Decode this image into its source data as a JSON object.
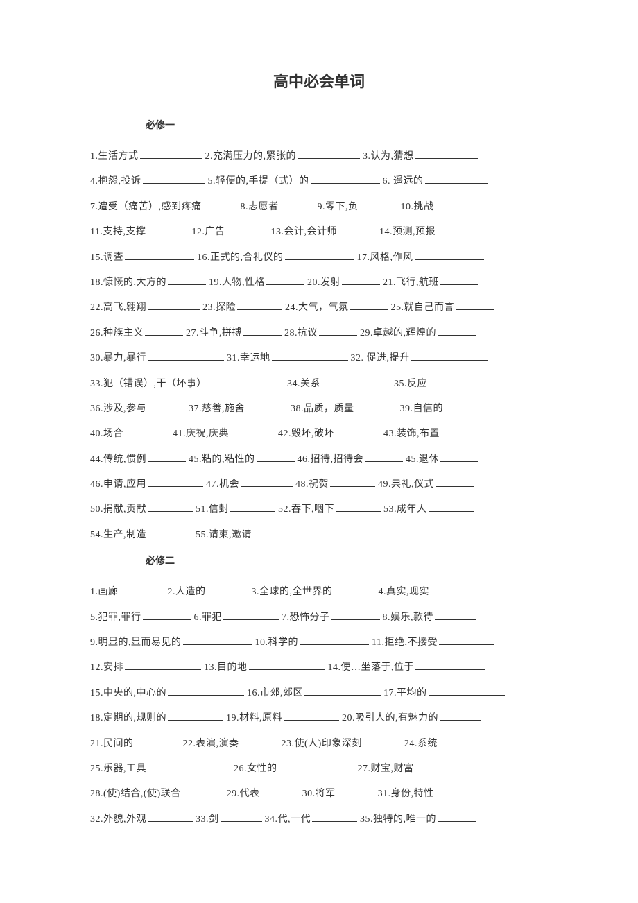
{
  "title": "高中必会单词",
  "sections": [
    {
      "header": "必修一",
      "lines": [
        [
          {
            "n": "1",
            "t": "生活方式",
            "w": 90
          },
          {
            "n": "2",
            "t": "充满压力的,紧张的",
            "w": 90
          },
          {
            "n": "3",
            "t": "认为,猜想",
            "w": 90
          }
        ],
        [
          {
            "n": "4",
            "t": "抱怨,投诉",
            "w": 90
          },
          {
            "n": "5",
            "t": "轻便的,手提（式）的",
            "w": 100
          },
          {
            "n": "6",
            "t": " 遥远的",
            "w": 90
          }
        ],
        [
          {
            "n": "7",
            "t": "遭受（痛苦）,感到疼痛",
            "w": 50
          },
          {
            "n": "8",
            "t": "志愿者",
            "w": 50
          },
          {
            "n": "9",
            "t": "零下,负",
            "w": 55
          },
          {
            "n": "10",
            "t": "挑战",
            "w": 55
          }
        ],
        [
          {
            "n": "11",
            "t": "支持,支撑",
            "w": 60
          },
          {
            "n": "12",
            "t": "广告",
            "w": 60
          },
          {
            "n": "13",
            "t": "会计,会计师",
            "w": 55
          },
          {
            "n": "14",
            "t": "预测,预报",
            "w": 55
          }
        ],
        [
          {
            "n": "15",
            "t": "调查",
            "w": 100
          },
          {
            "n": "16",
            "t": "正式的,合礼仪的",
            "w": 100
          },
          {
            "n": "17",
            "t": "风格,作风",
            "w": 100
          }
        ],
        [
          {
            "n": "18",
            "t": "慷慨的,大方的",
            "w": 55
          },
          {
            "n": "19",
            "t": "人物,性格",
            "w": 55
          },
          {
            "n": "20",
            "t": "发射",
            "w": 55
          },
          {
            "n": "21",
            "t": "飞行,航班",
            "w": 55
          }
        ],
        [
          {
            "n": "22",
            "t": "高飞,翱翔",
            "w": 75
          },
          {
            "n": "23",
            "t": "探险",
            "w": 65
          },
          {
            "n": "24",
            "t": "大气，气氛",
            "w": 55
          },
          {
            "n": "25",
            "t": "就自己而言",
            "w": 55
          }
        ],
        [
          {
            "n": "26",
            "t": "种族主义",
            "w": 55
          },
          {
            "n": "27",
            "t": "斗争,拼搏",
            "w": 55
          },
          {
            "n": "28",
            "t": "抗议",
            "w": 55
          },
          {
            "n": "29",
            "t": "卓越的,辉煌的",
            "w": 55
          }
        ],
        [
          {
            "n": "30",
            "t": "暴力,暴行",
            "w": 110
          },
          {
            "n": "31",
            "t": "幸运地",
            "w": 110
          },
          {
            "n": "32",
            "t": " 促进,提升",
            "w": 110
          }
        ],
        [
          {
            "n": "33",
            "t": "犯（错误）,干（坏事）",
            "w": 110
          },
          {
            "n": "34",
            "t": "关系",
            "w": 100
          },
          {
            "n": "35",
            "t": "反应",
            "w": 100
          }
        ],
        [
          {
            "n": "36",
            "t": "涉及,参与",
            "w": 55
          },
          {
            "n": "37",
            "t": "慈善,施舍",
            "w": 60
          },
          {
            "n": "38",
            "t": "品质，质量",
            "w": 60
          },
          {
            "n": "39",
            "t": "自信的",
            "w": 55
          }
        ],
        [
          {
            "n": "40",
            "t": "场合",
            "w": 65
          },
          {
            "n": "41",
            "t": "庆祝,庆典",
            "w": 65
          },
          {
            "n": "42",
            "t": "毁坏,破坏",
            "w": 65
          },
          {
            "n": "43",
            "t": "装饰,布置",
            "w": 55
          }
        ],
        [
          {
            "n": "44",
            "t": "传统,惯例",
            "w": 55
          },
          {
            "n": "45",
            "t": "粘的,粘性的",
            "w": 55
          },
          {
            "n": "46",
            "t": "招待,招待会",
            "w": 55
          },
          {
            "n": "45",
            "t": "退休",
            "w": 55
          }
        ],
        [
          {
            "n": "46",
            "t": "申请,应用",
            "w": 80
          },
          {
            "n": "47",
            "t": "机会",
            "w": 75
          },
          {
            "n": "48",
            "t": "祝贺",
            "w": 65
          },
          {
            "n": "49",
            "t": "典礼,仪式",
            "w": 55
          }
        ],
        [
          {
            "n": "50",
            "t": "捐献,贡献",
            "w": 65
          },
          {
            "n": "51",
            "t": "信封",
            "w": 65
          },
          {
            "n": "52",
            "t": "吞下,咽下",
            "w": 65
          },
          {
            "n": "53",
            "t": "成年人",
            "w": 65
          }
        ],
        [
          {
            "n": "54",
            "t": "生产,制造",
            "w": 65
          },
          {
            "n": "55",
            "t": "请柬,邀请",
            "w": 65
          }
        ]
      ]
    },
    {
      "header": "必修二",
      "lines": [
        [
          {
            "n": "1",
            "t": "画廊",
            "w": 65
          },
          {
            "n": "2",
            "t": "人造的",
            "w": 60
          },
          {
            "n": "3",
            "t": "全球的,全世界的",
            "w": 60
          },
          {
            "n": "4",
            "t": "真实,现实",
            "w": 65
          }
        ],
        [
          {
            "n": "5",
            "t": "犯罪,罪行",
            "w": 70
          },
          {
            "n": "6",
            "t": "罪犯",
            "w": 80
          },
          {
            "n": "7",
            "t": "恐怖分子",
            "w": 70
          },
          {
            "n": "8",
            "t": "娱乐,款待",
            "w": 60
          }
        ],
        [
          {
            "n": "9",
            "t": "明显的,显而易见的",
            "w": 100
          },
          {
            "n": "10",
            "t": "科学的",
            "w": 100
          },
          {
            "n": "11",
            "t": "拒绝,不接受",
            "w": 80
          }
        ],
        [
          {
            "n": "12",
            "t": "安排",
            "w": 110
          },
          {
            "n": "13",
            "t": "目的地",
            "w": 110
          },
          {
            "n": "14",
            "t": "使…坐落于,位于",
            "w": 100
          }
        ],
        [
          {
            "n": "15",
            "t": "中央的,中心的",
            "w": 110
          },
          {
            "n": "16",
            "t": "市郊,郊区",
            "w": 110
          },
          {
            "n": "17",
            "t": "平均的",
            "w": 110
          }
        ],
        [
          {
            "n": "18",
            "t": "定期的,规则的",
            "w": 80
          },
          {
            "n": "19",
            "t": "材料,原料",
            "w": 80
          },
          {
            "n": "20",
            "t": "吸引人的,有魅力的",
            "w": 60
          }
        ],
        [
          {
            "n": "21",
            "t": "民间的",
            "w": 65
          },
          {
            "n": "22",
            "t": "表演,演奏",
            "w": 55
          },
          {
            "n": "23",
            "t": "使(人)印象深刻",
            "w": 55
          },
          {
            "n": "24",
            "t": "系统",
            "w": 55
          }
        ],
        [
          {
            "n": "25",
            "t": "乐器,工具",
            "w": 120
          },
          {
            "n": "26",
            "t": "女性的",
            "w": 110
          },
          {
            "n": "27",
            "t": "财宝,财富",
            "w": 110
          }
        ],
        [
          {
            "n": "28",
            "t": "(使)结合,(使)联合",
            "w": 60
          },
          {
            "n": "29",
            "t": "代表",
            "w": 55
          },
          {
            "n": "30",
            "t": "将军",
            "w": 55
          },
          {
            "n": "31",
            "t": "身份,特性",
            "w": 55
          }
        ],
        [
          {
            "n": "32",
            "t": "外貌,外观",
            "w": 65
          },
          {
            "n": "33",
            "t": "剑",
            "w": 60
          },
          {
            "n": "34",
            "t": "代,一代",
            "w": 65
          },
          {
            "n": "35",
            "t": "独特的,唯一的",
            "w": 55
          }
        ]
      ]
    }
  ],
  "style": {
    "background_color": "#ffffff",
    "text_color": "#333333",
    "title_fontsize": 22,
    "body_fontsize": 14,
    "line_height": 2.6,
    "underline_color": "#333333"
  }
}
